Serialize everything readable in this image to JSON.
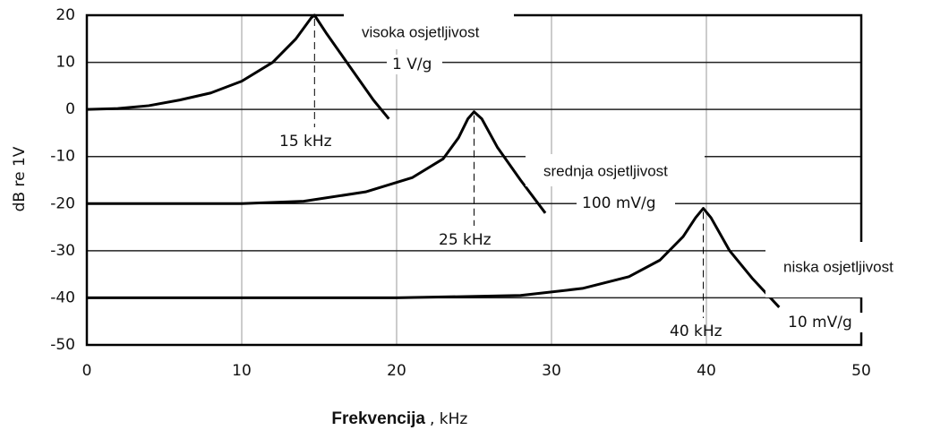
{
  "chart_data": {
    "type": "line",
    "xlabel": "Frekvencija",
    "xlabel_unit": ", kHz",
    "ylabel": "dB re 1V",
    "xlim": [
      0,
      50
    ],
    "xticks": [
      0,
      10,
      20,
      30,
      40,
      50
    ],
    "ylim": [
      -50,
      20
    ],
    "yticks": [
      20,
      10,
      0,
      -10,
      -20,
      -30,
      -40,
      -50
    ],
    "grid": true,
    "series": [
      {
        "name": "1 V/g",
        "color": "#000000",
        "x": [
          0,
          2,
          4,
          6,
          8,
          10,
          12,
          13.5,
          14.5,
          14.7,
          15.5,
          17,
          18.5,
          19.5
        ],
        "values": [
          0,
          0.2,
          0.8,
          2,
          3.5,
          6,
          10,
          15,
          19.5,
          20,
          16,
          9,
          2,
          -2
        ]
      },
      {
        "name": "100 mV/g",
        "color": "#000000",
        "x": [
          0,
          10,
          14,
          18,
          21,
          23,
          24,
          24.6,
          25,
          25.5,
          26.5,
          28,
          29.6
        ],
        "values": [
          -20,
          -20,
          -19.5,
          -17.5,
          -14.5,
          -10.5,
          -6,
          -2,
          -0.5,
          -2,
          -8,
          -15,
          -22
        ]
      },
      {
        "name": "10 mV/g",
        "color": "#000000",
        "x": [
          0,
          20,
          28,
          32,
          35,
          37,
          38.5,
          39.3,
          39.8,
          40.3,
          41.5,
          43,
          44.7
        ],
        "values": [
          -40,
          -40,
          -39.5,
          -38,
          -35.5,
          -32,
          -27,
          -23,
          -21,
          -23,
          -30,
          -36,
          -42
        ]
      }
    ],
    "annotations": [
      "visoka osjetljivost",
      "15 kHz",
      "srednja osjetljivost",
      "25 kHz",
      "niska osjetljivost",
      "40 kHz"
    ]
  }
}
